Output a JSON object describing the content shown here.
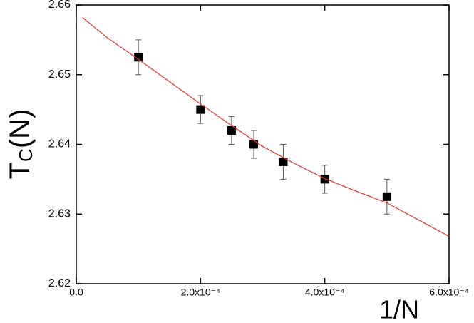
{
  "chart_data": {
    "type": "scatter",
    "x_label": "1/N",
    "y_label": {
      "base": "T",
      "sub": "C",
      "rest": "(N)"
    },
    "xlim": [
      0,
      0.0006
    ],
    "ylim": [
      2.62,
      2.66
    ],
    "xticks": [
      {
        "value": 0,
        "label": "0.0"
      },
      {
        "value": 0.0002,
        "label": "2.0x10⁻⁴"
      },
      {
        "value": 0.0004,
        "label": "4.0x10⁻⁴"
      },
      {
        "value": 0.0006,
        "label": "6.0x10⁻⁴"
      }
    ],
    "yticks": [
      2.62,
      2.63,
      2.64,
      2.65,
      2.66
    ],
    "series": [
      {
        "kind": "points",
        "color": "#000000",
        "x": [
          0.0001,
          0.0002,
          0.00025,
          0.0002857,
          0.0003333,
          0.0004,
          0.0005
        ],
        "values": [
          2.6525,
          2.645,
          2.642,
          2.64,
          2.6375,
          2.635,
          2.6325
        ],
        "error": [
          0.0025,
          0.002,
          0.002,
          0.002,
          0.0025,
          0.002,
          0.0025
        ]
      },
      {
        "kind": "line",
        "color": "#e8302a",
        "x": [
          1e-05,
          5e-05,
          0.0001,
          0.00015,
          0.0002,
          0.00025,
          0.0003,
          0.00035,
          0.0004,
          0.00045,
          0.0005,
          0.00055,
          0.0006
        ],
        "values": [
          2.6582,
          2.6553,
          2.6522,
          2.649,
          2.6458,
          2.6427,
          2.6397,
          2.6373,
          2.6351,
          2.6333,
          2.6316,
          2.6292,
          2.6268
        ]
      }
    ]
  }
}
